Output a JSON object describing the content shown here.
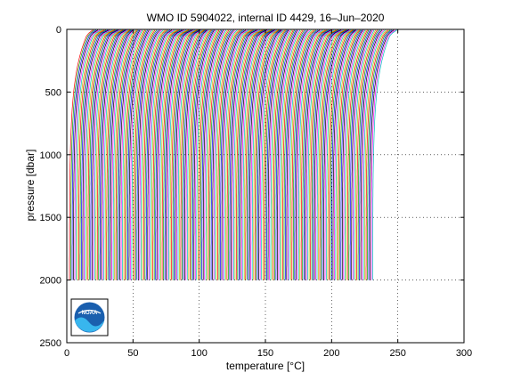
{
  "chart_data": {
    "type": "line",
    "title": "WMO ID 5904022, internal ID 4429, 16–Jun–2020",
    "xlabel": "temperature [°C]",
    "ylabel": "pressure [dbar]",
    "xlim": [
      0,
      300
    ],
    "ylim": [
      2500,
      0
    ],
    "y_axis_inverted": true,
    "grid": "dotted",
    "x_ticks": [
      "0",
      "50",
      "100",
      "150",
      "200",
      "250",
      "300"
    ],
    "y_ticks": [
      "0",
      "500",
      "1000",
      "1500",
      "2000",
      "2500"
    ],
    "profile_count": 230,
    "profile_offset_step_c": 1,
    "profile_depth_range_dbar": [
      5,
      2000
    ],
    "first_profile_surface_temp_c": 17,
    "first_profile_bottom_temp_c": 2,
    "series_colors": [
      "#ff0000",
      "#00a000",
      "#0000ff",
      "#000000",
      "#ff00ff",
      "#00c0c0",
      "#c0c000"
    ],
    "logo": {
      "icon": "noaa-logo",
      "text": "NOAA"
    }
  }
}
